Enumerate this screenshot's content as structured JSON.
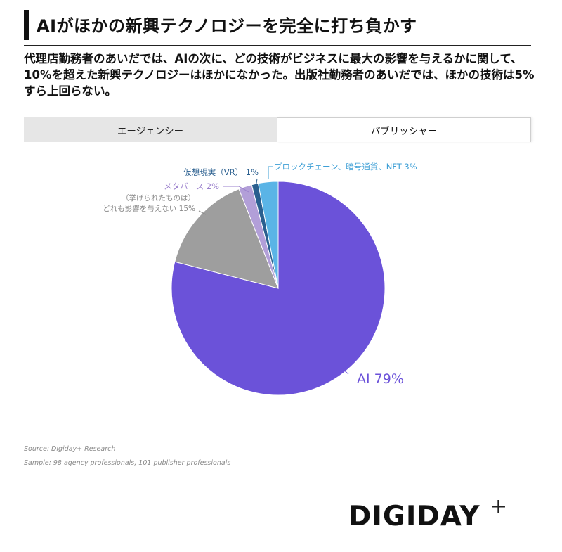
{
  "header": {
    "title": "AIがほかの新興テクノロジーを完全に打ち負かす",
    "subtitle": "代理店勤務者のあいだでは、AIの次に、どの技術がビジネスに最大の影響を与えるかに関して、10%を超えた新興テクノロジーはほかになかった。出版社勤務者のあいだでは、ほかの技術は5%すら上回らない。"
  },
  "tabs": [
    {
      "label": "エージェンシー",
      "active": false
    },
    {
      "label": "パブリッシャー",
      "active": true
    }
  ],
  "chart_data": {
    "type": "pie",
    "start": "12 o'clock, clockwise",
    "slices": [
      {
        "label": "AI 79%",
        "value": 79,
        "color": "#6b52d9",
        "label_color": "#6b52d9"
      },
      {
        "label_line1": "（挙げられたものは）",
        "label_line2": "どれも影響を与えない 15%",
        "value": 15,
        "color": "#9e9e9e",
        "label_color": "#8a8a8a"
      },
      {
        "label": "メタバース 2%",
        "value": 2,
        "color": "#b29fd8",
        "label_color": "#9a7fcc"
      },
      {
        "label": "仮想現実（VR） 1%",
        "value": 1,
        "color": "#2a5f8f",
        "label_color": "#2a5f8f"
      },
      {
        "label": "ブロックチェーン、暗号通貨、NFT 3%",
        "value": 3,
        "color": "#5ab4e6",
        "label_color": "#3d9fd6"
      }
    ]
  },
  "footer": {
    "source": "Source: Digiday+ Research",
    "sample": "Sample: 98 agency professionals, 101 publisher professionals"
  },
  "brand": {
    "logo_text": "DIGIDAY",
    "logo_plus": "+"
  }
}
